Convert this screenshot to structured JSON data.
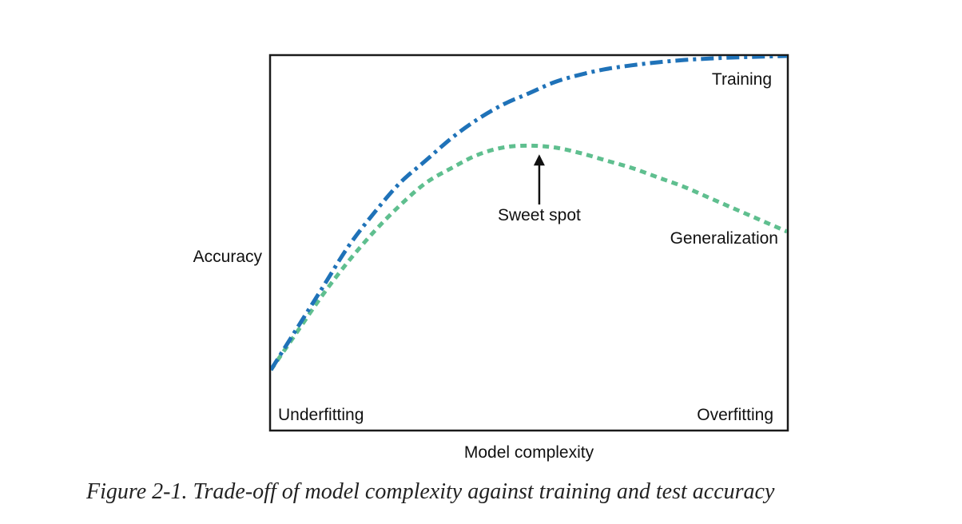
{
  "caption": "Figure 2-1. Trade-off of model complexity against training and test accuracy",
  "chart_data": {
    "type": "line",
    "title": "",
    "xlabel": "Model complexity",
    "ylabel": "Accuracy",
    "xlim": [
      0,
      100
    ],
    "ylim": [
      0,
      100
    ],
    "grid": false,
    "legend": "none",
    "x": [
      0,
      5,
      10,
      15,
      20,
      25,
      30,
      35,
      40,
      45,
      50,
      55,
      60,
      65,
      70,
      75,
      80,
      85,
      90,
      95,
      100
    ],
    "series": [
      {
        "name": "Training",
        "style": "dash-dot",
        "color": "#1f72b8",
        "values": [
          16,
          27,
          38,
          49,
          58,
          66,
          72,
          78,
          83,
          87,
          90,
          93,
          95,
          96.5,
          97.5,
          98.3,
          98.9,
          99.3,
          99.6,
          99.8,
          100
        ]
      },
      {
        "name": "Generalization",
        "style": "dotted",
        "color": "#5fbf8f",
        "values": [
          16,
          26,
          36,
          45,
          53,
          60,
          66,
          70,
          73.5,
          75.5,
          76,
          75.5,
          74,
          72,
          70,
          67.5,
          65,
          62,
          59,
          56,
          53
        ]
      }
    ],
    "annotations": {
      "training": "Training",
      "generalization": "Generalization",
      "sweet_spot": "Sweet spot",
      "underfitting": "Underfitting",
      "overfitting": "Overfitting"
    },
    "sweet_spot_x": 52
  }
}
